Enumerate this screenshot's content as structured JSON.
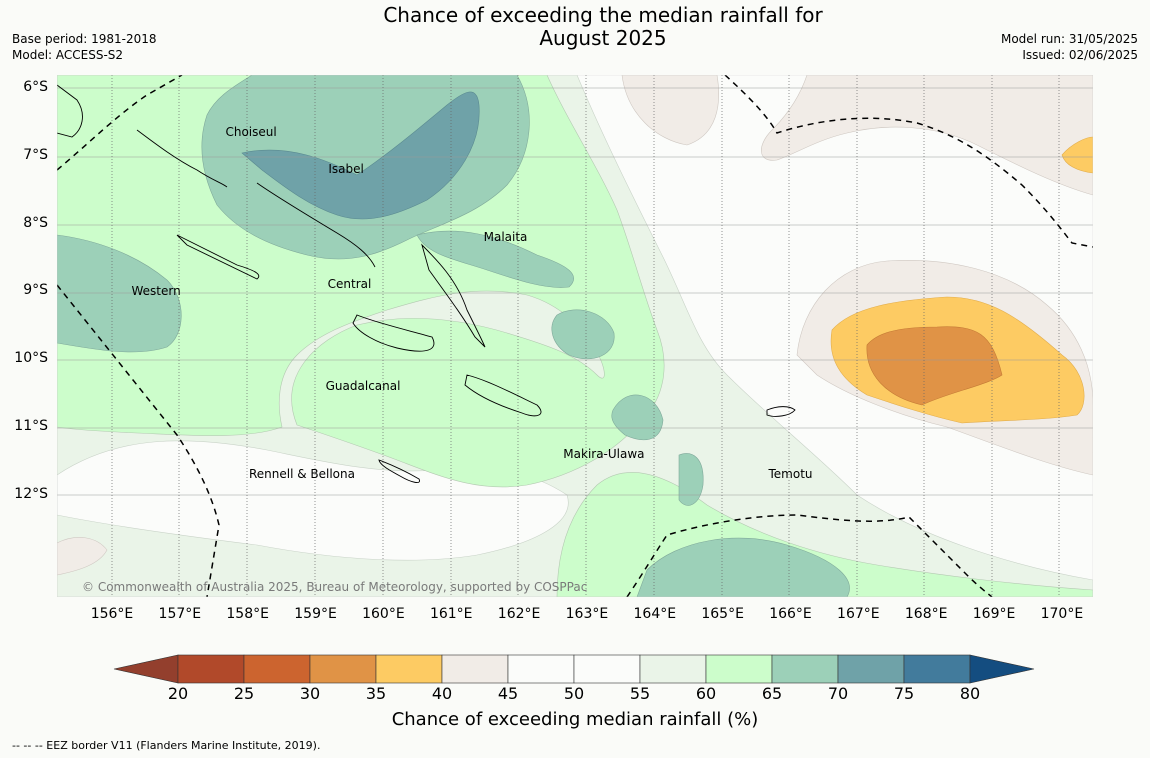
{
  "title": {
    "line1": "Chance of exceeding the median rainfall for",
    "line2": "August 2025"
  },
  "meta": {
    "base_period": "Base period: 1981-2018",
    "model": "Model: ACCESS-S2",
    "model_run": "Model run: 31/05/2025",
    "issued": "Issued: 02/06/2025"
  },
  "credit": "© Commonwealth of Australia 2025, Bureau of Meteorology, supported by COSPPac",
  "footer": "-- -- -- EEZ border V11 (Flanders Marine Institute, 2019).",
  "regions": [
    {
      "name": "Choiseul",
      "lon": 158.05,
      "lat": -6.65
    },
    {
      "name": "Isabel",
      "lon": 159.45,
      "lat": -7.2
    },
    {
      "name": "Malaita",
      "lon": 161.8,
      "lat": -8.2
    },
    {
      "name": "Western",
      "lon": 156.65,
      "lat": -9.0
    },
    {
      "name": "Central",
      "lon": 159.5,
      "lat": -8.9
    },
    {
      "name": "Guadalcanal",
      "lon": 159.7,
      "lat": -10.4
    },
    {
      "name": "Rennell & Bellona",
      "lon": 158.8,
      "lat": -11.7
    },
    {
      "name": "Makira-Ulawa",
      "lon": 163.25,
      "lat": -11.4
    },
    {
      "name": "Temotu",
      "lon": 166.0,
      "lat": -11.7
    }
  ],
  "axes": {
    "lon_labels": [
      "156°E",
      "157°E",
      "158°E",
      "159°E",
      "160°E",
      "161°E",
      "162°E",
      "163°E",
      "164°E",
      "165°E",
      "166°E",
      "167°E",
      "168°E",
      "169°E",
      "170°E"
    ],
    "lat_labels": [
      "6°S",
      "7°S",
      "8°S",
      "9°S",
      "10°S",
      "11°S",
      "12°S"
    ]
  },
  "colorbar": {
    "title": "Chance of exceeding median rainfall (%)",
    "ticks": [
      "20",
      "25",
      "30",
      "35",
      "40",
      "45",
      "50",
      "55",
      "60",
      "65",
      "70",
      "75",
      "80"
    ],
    "colors": [
      "#b1492a",
      "#cc642f",
      "#e09346",
      "#fdcb63",
      "#f1ece7",
      "#fbfcfa",
      "#fbfcfa",
      "#eaf4e8",
      "#ccfdcb",
      "#9cd0b8",
      "#6fa2a8",
      "#427b9c"
    ],
    "under_color": "#933f2d",
    "over_color": "#144d80"
  },
  "legend": {
    "eez": "EEZ border"
  }
}
